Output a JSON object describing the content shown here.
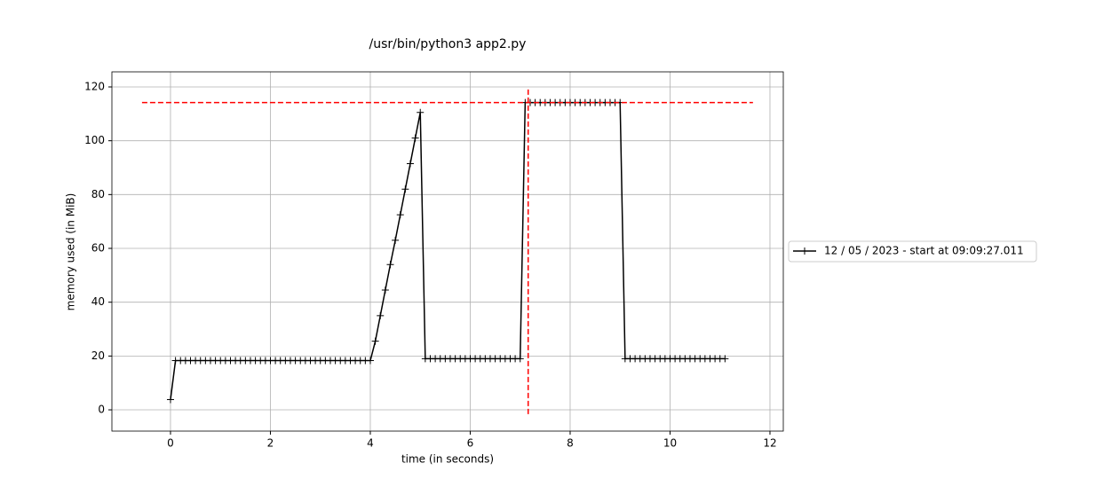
{
  "chart_data": {
    "type": "line",
    "title": "/usr/bin/python3 app2.py",
    "xlabel": "time (in seconds)",
    "ylabel": "memory used (in MiB)",
    "x": [
      0,
      0.1,
      0.2,
      0.3,
      0.4,
      0.5,
      0.6,
      0.7,
      0.8,
      0.9,
      1,
      1.1,
      1.2,
      1.3,
      1.4,
      1.5,
      1.6,
      1.7,
      1.8,
      1.9,
      2,
      2.1,
      2.2,
      2.3,
      2.4,
      2.5,
      2.6,
      2.7,
      2.8,
      2.9,
      3,
      3.1,
      3.2,
      3.3,
      3.4,
      3.5,
      3.6,
      3.7,
      3.8,
      3.9,
      4,
      4.1,
      4.2,
      4.3,
      4.4,
      4.5,
      4.6,
      4.7,
      4.8,
      4.9,
      5,
      5.1,
      5.2,
      5.3,
      5.4,
      5.5,
      5.6,
      5.7,
      5.8,
      5.9,
      6,
      6.1,
      6.2,
      6.3,
      6.4,
      6.5,
      6.6,
      6.7,
      6.8,
      6.9,
      7,
      7.1,
      7.2,
      7.3,
      7.4,
      7.5,
      7.6,
      7.7,
      7.8,
      7.9,
      8,
      8.1,
      8.2,
      8.3,
      8.4,
      8.5,
      8.6,
      8.7,
      8.8,
      8.9,
      9,
      9.1,
      9.2,
      9.3,
      9.4,
      9.5,
      9.6,
      9.7,
      9.8,
      9.9,
      10,
      10.1,
      10.2,
      10.3,
      10.4,
      10.5,
      10.6,
      10.7,
      10.8,
      10.9,
      11,
      11.1
    ],
    "series": [
      {
        "name": "12 / 05 / 2023 - start at 09:09:27.011",
        "color": "#000000",
        "values": [
          3.8,
          18.3,
          18.3,
          18.3,
          18.3,
          18.3,
          18.3,
          18.3,
          18.3,
          18.3,
          18.3,
          18.3,
          18.3,
          18.3,
          18.3,
          18.3,
          18.3,
          18.3,
          18.3,
          18.3,
          18.3,
          18.3,
          18.3,
          18.3,
          18.3,
          18.3,
          18.3,
          18.3,
          18.3,
          18.3,
          18.3,
          18.3,
          18.3,
          18.3,
          18.3,
          18.3,
          18.3,
          18.3,
          18.3,
          18.3,
          18.3,
          25.5,
          35,
          44.5,
          54,
          63,
          72.5,
          82,
          91.5,
          101,
          110.5,
          19,
          19,
          19,
          19,
          19,
          19,
          19,
          19,
          19,
          19,
          19,
          19,
          19,
          19,
          19,
          19,
          19,
          19,
          19,
          19,
          114.2,
          114.2,
          114.2,
          114.2,
          114.2,
          114.2,
          114.2,
          114.2,
          114.2,
          114.2,
          114.2,
          114.2,
          114.2,
          114.2,
          114.2,
          114.2,
          114.2,
          114.2,
          114.2,
          114.2,
          19,
          19,
          19,
          19,
          19,
          19,
          19,
          19,
          19,
          19,
          19,
          19,
          19,
          19,
          19,
          19,
          19,
          19,
          19,
          19,
          19
        ]
      }
    ],
    "hlines": [
      {
        "y": 114.2,
        "xmin": -0.57,
        "xmax": 11.66,
        "color": "#ff0000"
      }
    ],
    "vlines": [
      {
        "x": 7.16,
        "ymin": -1.6,
        "ymax": 120,
        "color": "#ff0000"
      }
    ],
    "xlim": [
      -1.173,
      12.267
    ],
    "ylim": [
      -7.9,
      125.6
    ],
    "xticks": [
      0,
      2,
      4,
      6,
      8,
      10,
      12
    ],
    "yticks": [
      0,
      20,
      40,
      60,
      80,
      100,
      120
    ],
    "grid": true,
    "legend": "outside right"
  }
}
